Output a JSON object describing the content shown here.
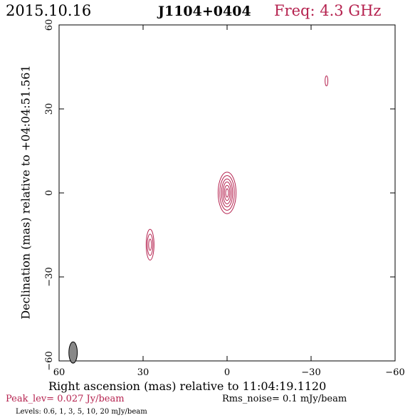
{
  "header": {
    "date": "2015.10.16",
    "source": "J1104+0404",
    "freq": "Freq: 4.3 GHz"
  },
  "footer": {
    "peak": "Peak_lev=  0.027 Jy/beam",
    "rms": "Rms_noise=  0.1 mJy/beam",
    "levels": "Levels: 0.6,   1,   3,   5,  10,  20 mJy/beam"
  },
  "colors": {
    "contour": "#b5224f",
    "beam": "#888888",
    "axes": "#000000"
  },
  "chart_data": {
    "type": "contour",
    "xlabel": "Right ascension (mas) relative to 11:04:19.1120",
    "ylabel": "Declination (mas) relative to +04:04:51.561",
    "xlim": [
      60,
      -60
    ],
    "ylim": [
      -60,
      60
    ],
    "xticks": [
      60,
      30,
      0,
      -30,
      -60
    ],
    "yticks": [
      -60,
      -30,
      0,
      30,
      60
    ],
    "xtick_labels": [
      "60",
      "30",
      "0",
      "−30",
      "−60"
    ],
    "ytick_labels": [
      "−60",
      "−30",
      "0",
      "30",
      "60"
    ],
    "components": [
      {
        "x": 0.0,
        "y": 0.0,
        "rx": [
          0.5,
          1.0,
          1.5,
          2.0,
          2.6,
          3.2
        ],
        "ry": [
          1.5,
          2.7,
          3.9,
          5.0,
          6.2,
          7.4
        ]
      },
      {
        "x": 27.5,
        "y": -18.5,
        "rx": [
          0.5,
          1.0,
          1.4
        ],
        "ry": [
          2.0,
          3.8,
          5.5
        ]
      },
      {
        "x": -35.5,
        "y": 40.0,
        "rx": [
          0.5
        ],
        "ry": [
          1.8
        ]
      }
    ],
    "beam": {
      "x": 55.0,
      "y": -57.0,
      "rx": 1.5,
      "ry": 3.8,
      "angle": 0
    }
  }
}
